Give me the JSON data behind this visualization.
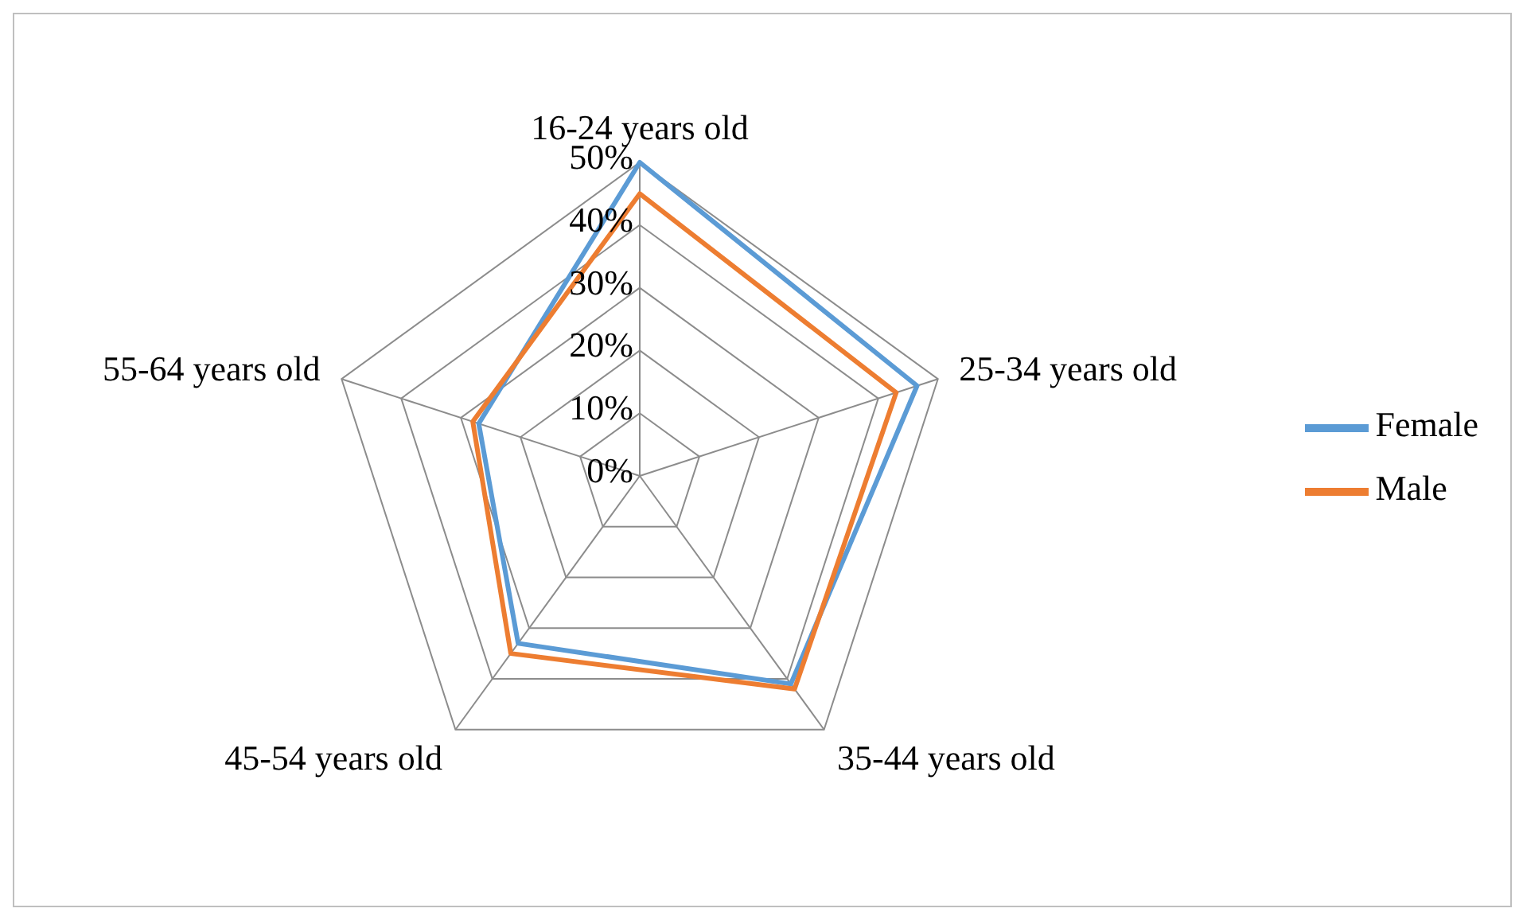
{
  "chart_data": {
    "type": "radar",
    "categories": [
      "16-24 years old",
      "25-34 years old",
      "35-44 years old",
      "45-54 years old",
      "55-64 years old"
    ],
    "series": [
      {
        "name": "Female",
        "color": "#5b9bd5",
        "values": [
          50,
          46.5,
          41,
          33,
          27
        ]
      },
      {
        "name": "Male",
        "color": "#ed7d31",
        "values": [
          45,
          43,
          42,
          35,
          28
        ]
      }
    ],
    "ylim": [
      0,
      50
    ],
    "yticks": [
      {
        "value": 0,
        "label": "0%"
      },
      {
        "value": 10,
        "label": "10%"
      },
      {
        "value": 20,
        "label": "20%"
      },
      {
        "value": 30,
        "label": "30%"
      },
      {
        "value": 40,
        "label": "40%"
      },
      {
        "value": 50,
        "label": "50%"
      }
    ],
    "grid": true,
    "legend": "right",
    "marker": "none"
  }
}
